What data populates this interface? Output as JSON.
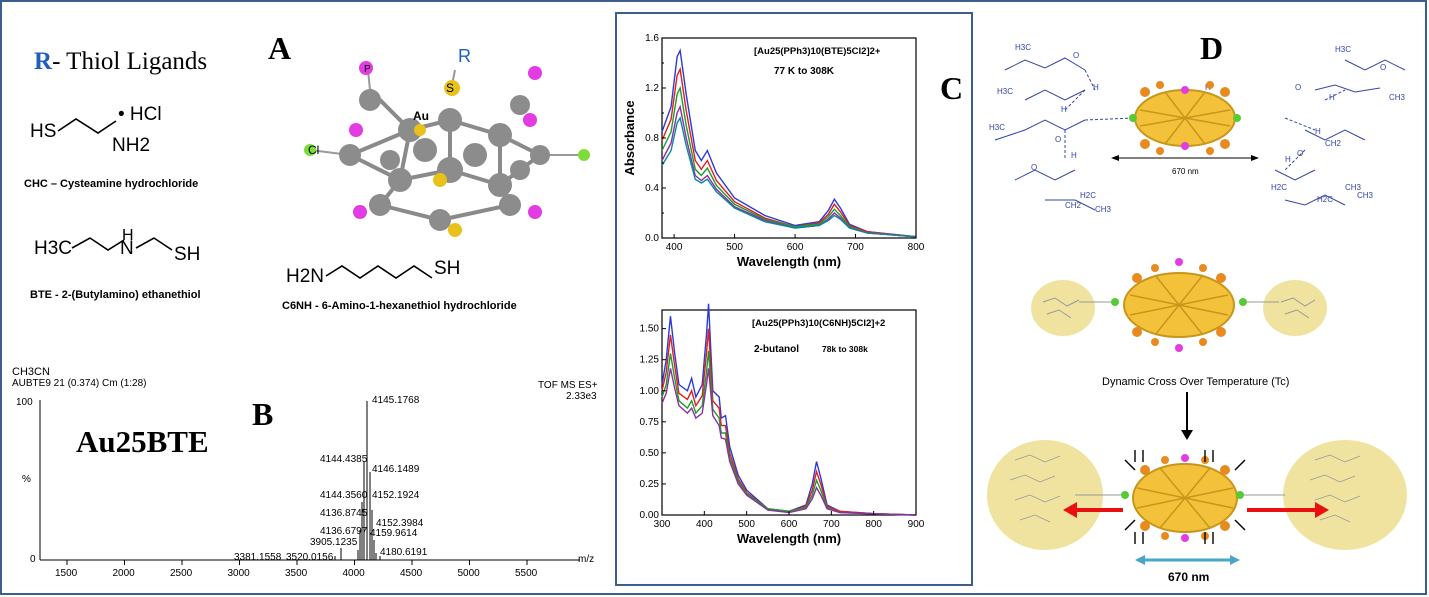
{
  "panels": {
    "A": "A",
    "B": "B",
    "C": "C",
    "D": "D"
  },
  "ligands": {
    "title_r": "R",
    "title_rest": "- Thiol Ligands",
    "chc": {
      "hcl": "• HCl",
      "name": "CHC – Cysteamine hydrochloride",
      "hs": "HS",
      "nh2": "NH2"
    },
    "bte": {
      "name": "BTE - 2-(Butylamino) ethanethiol",
      "h3c": "H3C",
      "n": "N",
      "h": "H",
      "sh": "SH"
    },
    "c6nh": {
      "name": "C6NH - 6-Amino-1-hexanethiol hydrochloride",
      "h2n": "H2N",
      "sh": "SH"
    }
  },
  "cluster_labels": {
    "p": "P",
    "s": "S",
    "r": "R",
    "au": "Au",
    "cl": "Cl"
  },
  "ms": {
    "solvent": "CH3CN",
    "run": "AUBTE9 21 (0.374) Cm (1:28)",
    "mode": "TOF MS ES+",
    "intensity": "2.33e3",
    "compound": "Au25BTE",
    "y_top": "100",
    "y_label": "%",
    "y_zero": "0",
    "x_unit": "m/z",
    "x_ticks": [
      "1500",
      "2000",
      "2500",
      "3000",
      "3500",
      "4000",
      "4500",
      "5000",
      "5500"
    ],
    "peak_labels": [
      "4145.1768",
      "4144.4385",
      "4146.1489",
      "4144.3560",
      "4152.1924",
      "4136.8745",
      "4152.3984",
      "4136.6797",
      "4159.9614",
      "3905.1235",
      "3381.1558",
      "3520.0156",
      "4180.6191"
    ]
  },
  "chart_data": [
    {
      "type": "line",
      "title": "[Au25(PPh3)10(BTE)5Cl2]2+",
      "subtitle": "77 K to 308K",
      "xlabel": "Wavelength (nm)",
      "ylabel": "Absorbance",
      "xlim": [
        380,
        800
      ],
      "ylim": [
        0.0,
        1.6
      ],
      "x_ticks": [
        "400",
        "500",
        "600",
        "700",
        "800"
      ],
      "y_ticks": [
        "0.0",
        "0.4",
        "0.8",
        "1.2",
        "1.6"
      ],
      "y_ticks_minor": [
        "0.2",
        "0.6",
        "1.0",
        "1.4"
      ],
      "x": [
        380,
        395,
        405,
        410,
        420,
        435,
        445,
        455,
        470,
        500,
        550,
        600,
        640,
        655,
        665,
        675,
        690,
        720,
        800
      ],
      "series": [
        {
          "values": [
            0.85,
            1.05,
            1.45,
            1.5,
            1.15,
            0.7,
            0.62,
            0.7,
            0.52,
            0.32,
            0.18,
            0.1,
            0.13,
            0.22,
            0.31,
            0.24,
            0.11,
            0.05,
            0.01
          ]
        },
        {
          "values": [
            0.78,
            0.95,
            1.3,
            1.35,
            1.02,
            0.62,
            0.55,
            0.62,
            0.46,
            0.29,
            0.16,
            0.09,
            0.12,
            0.19,
            0.27,
            0.21,
            0.1,
            0.05,
            0.01
          ]
        },
        {
          "values": [
            0.7,
            0.85,
            1.15,
            1.2,
            0.9,
            0.55,
            0.5,
            0.56,
            0.42,
            0.27,
            0.15,
            0.09,
            0.11,
            0.17,
            0.23,
            0.18,
            0.09,
            0.04,
            0.01
          ]
        },
        {
          "values": [
            0.62,
            0.76,
            1.0,
            1.05,
            0.8,
            0.5,
            0.46,
            0.5,
            0.39,
            0.25,
            0.14,
            0.08,
            0.1,
            0.15,
            0.2,
            0.16,
            0.08,
            0.04,
            0.01
          ]
        },
        {
          "values": [
            0.58,
            0.7,
            0.92,
            0.96,
            0.74,
            0.47,
            0.44,
            0.47,
            0.37,
            0.24,
            0.13,
            0.08,
            0.1,
            0.14,
            0.18,
            0.15,
            0.08,
            0.04,
            0.01
          ]
        }
      ]
    },
    {
      "type": "line",
      "title": "[Au25(PPh3)10(C6NH)5Cl2]+2",
      "subtitle": "2-butanol",
      "annotation": "78k to 308k",
      "xlabel": "Wavelength (nm)",
      "ylabel": "",
      "xlim": [
        300,
        900
      ],
      "ylim": [
        0.0,
        1.65
      ],
      "x_ticks": [
        "300",
        "400",
        "500",
        "600",
        "700",
        "800",
        "900"
      ],
      "y_ticks": [
        "0.00",
        "0.25",
        "0.50",
        "0.75",
        "1.00",
        "1.25",
        "1.50"
      ],
      "x": [
        300,
        310,
        320,
        330,
        340,
        360,
        370,
        380,
        395,
        405,
        410,
        420,
        435,
        440,
        450,
        460,
        480,
        500,
        550,
        600,
        640,
        655,
        665,
        675,
        690,
        720,
        800,
        900
      ],
      "series": [
        {
          "values": [
            1.05,
            1.25,
            1.6,
            1.3,
            1.05,
            1.0,
            1.1,
            0.95,
            1.05,
            1.45,
            1.7,
            1.0,
            0.95,
            0.78,
            0.8,
            0.55,
            0.32,
            0.2,
            0.05,
            0.03,
            0.08,
            0.25,
            0.43,
            0.3,
            0.08,
            0.03,
            0.01,
            0.0
          ]
        },
        {
          "values": [
            1.0,
            1.15,
            1.45,
            1.2,
            0.98,
            0.93,
            1.0,
            0.88,
            0.96,
            1.3,
            1.5,
            0.92,
            0.86,
            0.72,
            0.72,
            0.5,
            0.29,
            0.18,
            0.05,
            0.03,
            0.07,
            0.2,
            0.35,
            0.25,
            0.07,
            0.03,
            0.01,
            0.0
          ]
        },
        {
          "values": [
            0.95,
            1.05,
            1.3,
            1.1,
            0.92,
            0.86,
            0.92,
            0.82,
            0.88,
            1.15,
            1.32,
            0.85,
            0.78,
            0.66,
            0.66,
            0.46,
            0.27,
            0.17,
            0.05,
            0.03,
            0.06,
            0.16,
            0.28,
            0.2,
            0.06,
            0.02,
            0.01,
            0.0
          ]
        },
        {
          "values": [
            0.9,
            0.98,
            1.18,
            1.02,
            0.88,
            0.82,
            0.86,
            0.78,
            0.82,
            1.05,
            1.18,
            0.8,
            0.72,
            0.62,
            0.61,
            0.43,
            0.25,
            0.16,
            0.04,
            0.02,
            0.05,
            0.13,
            0.22,
            0.16,
            0.05,
            0.02,
            0.01,
            0.0
          ]
        }
      ]
    }
  ],
  "panel_d": {
    "distance_top": "670 nm",
    "process_label": "Dynamic Cross  Over Temperature (Tc)",
    "distance_bottom": "670 nm",
    "mol_labels": [
      "H3C",
      "O",
      "H",
      "H3C",
      "H",
      "O",
      "H",
      "H2C",
      "H3C",
      "O",
      "CH3",
      "CH2",
      "H",
      "H3C",
      "O",
      "H",
      "H",
      "O",
      "CH3",
      "CH2",
      "H2C",
      "CH3",
      "H",
      "O",
      "H2C",
      "CH3"
    ]
  },
  "colors": {
    "frame": "#3b5f8a",
    "r_blue": "#1f5fbf",
    "red_label": "#e02020",
    "bead_yellow": "#f0e3a0",
    "arrow_red": "#e81010",
    "arrow_teal": "#4aa3c8"
  }
}
